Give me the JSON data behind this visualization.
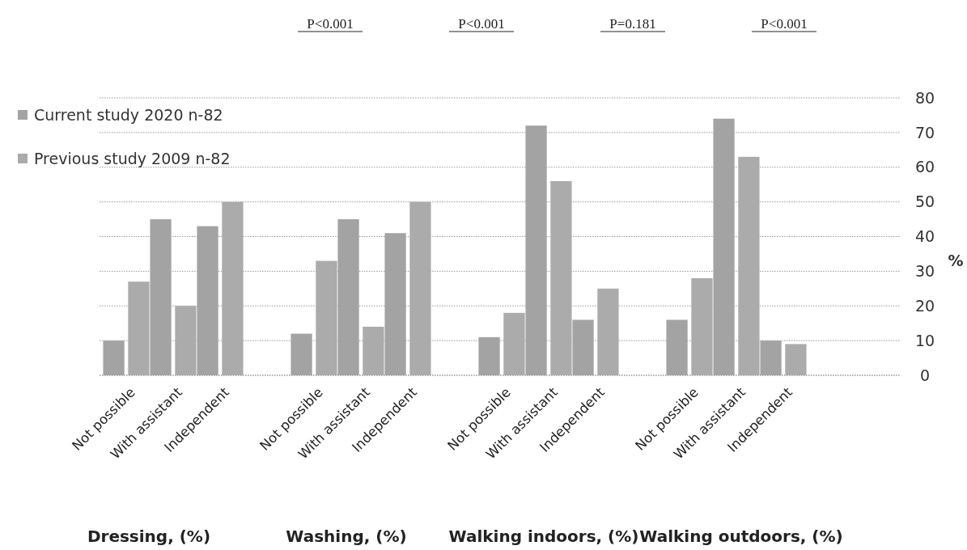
{
  "chart_data": {
    "type": "bar",
    "categories": [
      "Not possible",
      "With assistant",
      "Independent",
      null,
      "Not possible",
      "With assistant",
      "Independent",
      null,
      "Not possible",
      "With assistant",
      "Independent",
      null,
      "Not possible",
      "With assistant",
      "Independent",
      null,
      null
    ],
    "series": [
      {
        "name": "Current study 2020 n-82",
        "color": "#a3a3a3",
        "values": [
          10,
          45,
          43,
          null,
          12,
          45,
          41,
          null,
          11,
          72,
          16,
          null,
          16,
          74,
          10,
          null,
          null
        ]
      },
      {
        "name": "Previous study 2009 n-82",
        "color": "#ababab",
        "values": [
          27,
          20,
          50,
          null,
          33,
          14,
          50,
          null,
          18,
          56,
          25,
          null,
          28,
          63,
          9,
          null,
          null
        ]
      }
    ],
    "ylabel": "%",
    "ylim": [
      0,
      80
    ],
    "yticks": [
      0,
      10,
      20,
      30,
      40,
      50,
      60,
      70,
      80
    ],
    "grid": "y",
    "legend": "top left",
    "annotations": [
      "P<0.001",
      "P<0.001",
      "P=0.181",
      "P<0.001",
      "Dressing, (%)",
      "Washing, (%)",
      "Walking indoors, (%)",
      "Walking outdoors, (%)"
    ]
  }
}
